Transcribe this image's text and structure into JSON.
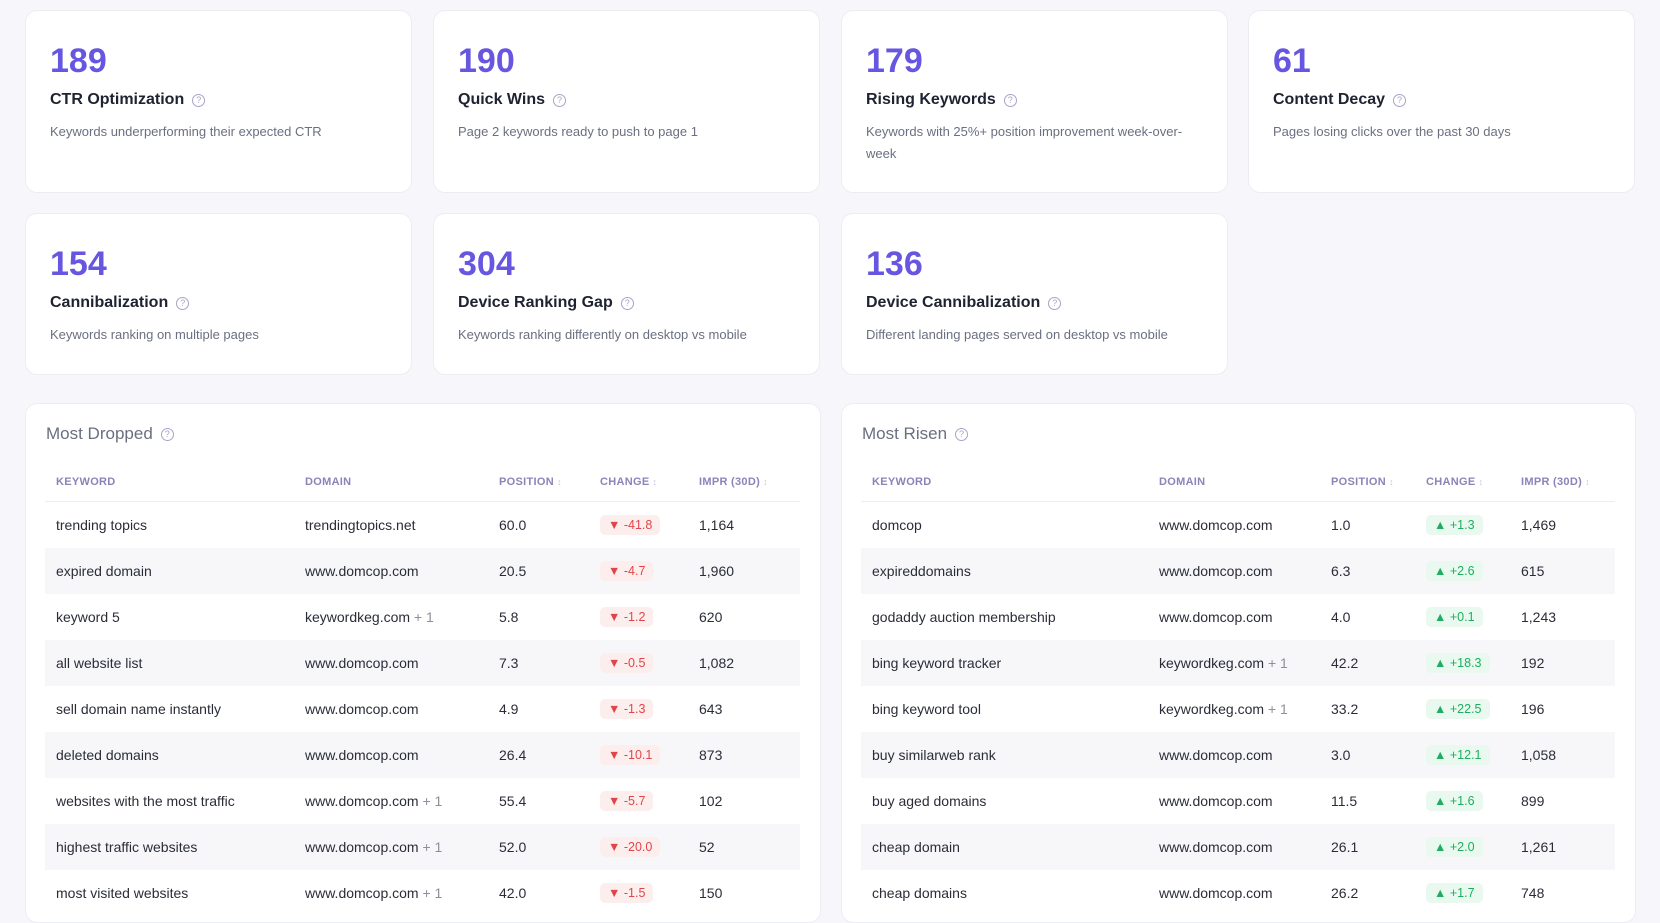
{
  "cards": [
    {
      "value": "189",
      "title": "CTR Optimization",
      "desc": "Keywords underperforming their expected CTR"
    },
    {
      "value": "190",
      "title": "Quick Wins",
      "desc": "Page 2 keywords ready to push to page 1"
    },
    {
      "value": "179",
      "title": "Rising Keywords",
      "desc": "Keywords with 25%+ position improvement week-over-week"
    },
    {
      "value": "61",
      "title": "Content Decay",
      "desc": "Pages losing clicks over the past 30 days"
    },
    {
      "value": "154",
      "title": "Cannibalization",
      "desc": "Keywords ranking on multiple pages"
    },
    {
      "value": "304",
      "title": "Device Ranking Gap",
      "desc": "Keywords ranking differently on desktop vs mobile"
    },
    {
      "value": "136",
      "title": "Device Cannibalization",
      "desc": "Different landing pages served on desktop vs mobile"
    }
  ],
  "columns": [
    "KEYWORD",
    "DOMAIN",
    "POSITION",
    "CHANGE",
    "IMPR (30D)"
  ],
  "help_icon": "?",
  "sort_icon": "↕",
  "dropped": {
    "title": "Most Dropped",
    "rows": [
      [
        "trending topics",
        "trendingtopics.net",
        "",
        "60.0",
        "-41.8",
        "1,164"
      ],
      [
        "expired domain",
        "www.domcop.com",
        "",
        "20.5",
        "-4.7",
        "1,960"
      ],
      [
        "keyword 5",
        "keywordkeg.com",
        "+ 1",
        "5.8",
        "-1.2",
        "620"
      ],
      [
        "all website list",
        "www.domcop.com",
        "",
        "7.3",
        "-0.5",
        "1,082"
      ],
      [
        "sell domain name instantly",
        "www.domcop.com",
        "",
        "4.9",
        "-1.3",
        "643"
      ],
      [
        "deleted domains",
        "www.domcop.com",
        "",
        "26.4",
        "-10.1",
        "873"
      ],
      [
        "websites with the most traffic",
        "www.domcop.com",
        "+ 1",
        "55.4",
        "-5.7",
        "102"
      ],
      [
        "highest traffic websites",
        "www.domcop.com",
        "+ 1",
        "52.0",
        "-20.0",
        "52"
      ],
      [
        "most visited websites",
        "www.domcop.com",
        "+ 1",
        "42.0",
        "-1.5",
        "150"
      ]
    ]
  },
  "risen": {
    "title": "Most Risen",
    "rows": [
      [
        "domcop",
        "www.domcop.com",
        "",
        "1.0",
        "+1.3",
        "1,469"
      ],
      [
        "expireddomains",
        "www.domcop.com",
        "",
        "6.3",
        "+2.6",
        "615"
      ],
      [
        "godaddy auction membership",
        "www.domcop.com",
        "",
        "4.0",
        "+0.1",
        "1,243"
      ],
      [
        "bing keyword tracker",
        "keywordkeg.com",
        "+ 1",
        "42.2",
        "+18.3",
        "192"
      ],
      [
        "bing keyword tool",
        "keywordkeg.com",
        "+ 1",
        "33.2",
        "+22.5",
        "196"
      ],
      [
        "buy similarweb rank",
        "www.domcop.com",
        "",
        "3.0",
        "+12.1",
        "1,058"
      ],
      [
        "buy aged domains",
        "www.domcop.com",
        "",
        "11.5",
        "+1.6",
        "899"
      ],
      [
        "cheap domain",
        "www.domcop.com",
        "",
        "26.1",
        "+2.0",
        "1,261"
      ],
      [
        "cheap domains",
        "www.domcop.com",
        "",
        "26.2",
        "+1.7",
        "748"
      ]
    ]
  },
  "colors": {
    "accent": "#6656e0",
    "down": "#e0454a",
    "up": "#1fae5f"
  }
}
